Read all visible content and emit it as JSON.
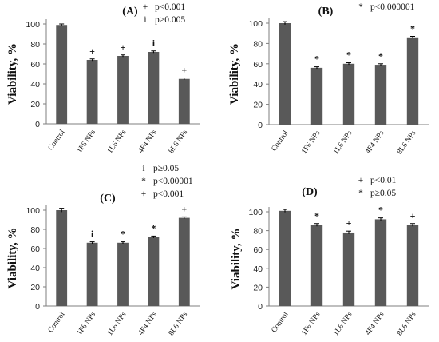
{
  "bar_color": "#595959",
  "axis_color": "#7f7f7f",
  "chart_data": [
    {
      "type": "bar",
      "title": "(A)",
      "ylabel": "Viability, %",
      "ylim": [
        0,
        100
      ],
      "yticks": [
        0,
        20,
        40,
        60,
        80,
        100
      ],
      "categories": [
        "Control",
        "1F6 NPs",
        "1L6 NPs",
        "4F4 NPs",
        "8L6 NPs"
      ],
      "values": [
        99,
        64,
        68,
        72,
        45
      ],
      "errors": [
        1,
        1,
        1,
        1,
        1
      ],
      "markers": [
        "",
        "+",
        "+",
        "i",
        "+"
      ],
      "legend": [
        {
          "symbol": "+",
          "text": "p<0.001"
        },
        {
          "symbol": "i",
          "text": "p>0.005"
        }
      ]
    },
    {
      "type": "bar",
      "title": "(B)",
      "ylabel": "Viability, %",
      "ylim": [
        0,
        100
      ],
      "yticks": [
        0,
        20,
        40,
        60,
        80,
        100
      ],
      "categories": [
        "Control",
        "1F6 NPs",
        "1L6 NPs",
        "4F4 NPs",
        "8L6 NPs"
      ],
      "values": [
        100,
        56,
        60,
        59,
        86
      ],
      "errors": [
        1.5,
        1,
        1,
        1,
        1
      ],
      "markers": [
        "",
        "*",
        "*",
        "*",
        "*"
      ],
      "legend": [
        {
          "symbol": "*",
          "text": "p<0.000001"
        }
      ]
    },
    {
      "type": "bar",
      "title": "(C)",
      "ylabel": "Viability, %",
      "ylim": [
        0,
        100
      ],
      "yticks": [
        0,
        20,
        40,
        60,
        80,
        100
      ],
      "categories": [
        "Control",
        "1F6 NPs",
        "1L6 NPs",
        "4F4 NPs",
        "8L6 NPs"
      ],
      "values": [
        100,
        66,
        66,
        72,
        92
      ],
      "errors": [
        2,
        1,
        1,
        1,
        1
      ],
      "markers": [
        "",
        "i",
        "*",
        "*",
        "+"
      ],
      "legend": [
        {
          "symbol": "i",
          "text": "p≥0.05"
        },
        {
          "symbol": "*",
          "text": "p<0.00001"
        },
        {
          "symbol": "+",
          "text": "p<0.001"
        }
      ]
    },
    {
      "type": "bar",
      "title": "(D)",
      "ylabel": "Viability, %",
      "ylim": [
        0,
        100
      ],
      "yticks": [
        0,
        20,
        40,
        60,
        80,
        100
      ],
      "categories": [
        "Control",
        "1F6 NPs",
        "1L6 NPs",
        "4F4 NPs",
        "8L6 NPs"
      ],
      "values": [
        101,
        86,
        78,
        92,
        86
      ],
      "errors": [
        1.5,
        1.5,
        1.5,
        1.5,
        1.5
      ],
      "markers": [
        "",
        "*",
        "+",
        "*",
        "+"
      ],
      "legend": [
        {
          "symbol": "+",
          "text": "p<0.01"
        },
        {
          "symbol": "*",
          "text": "p≥0.05"
        }
      ]
    }
  ]
}
